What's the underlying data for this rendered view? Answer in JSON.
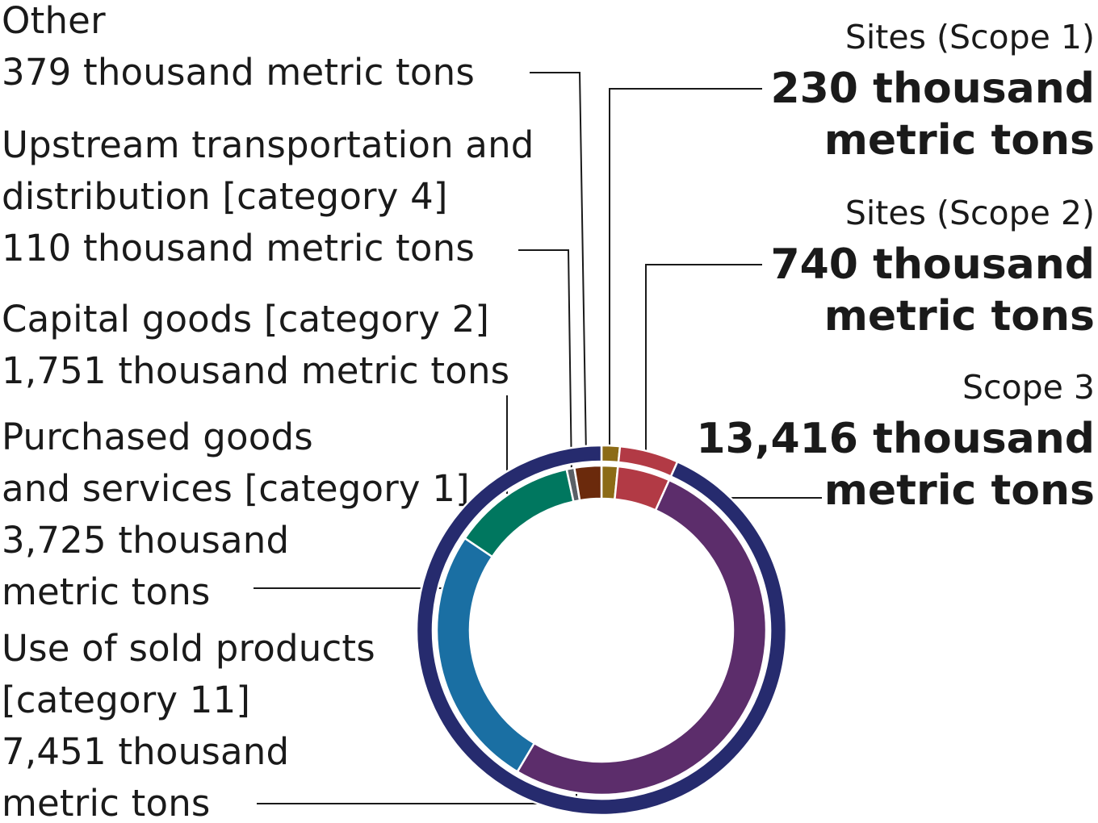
{
  "chart_data": {
    "type": "donut",
    "outer_ring": [
      {
        "key": "scope1",
        "name": "Sites (Scope 1)",
        "value": 230,
        "value_text": "230 thousand metric tons",
        "lines": [
          "230 thousand",
          "metric tons"
        ],
        "color": "#8c6b16"
      },
      {
        "key": "scope2",
        "name": "Sites (Scope 2)",
        "value": 740,
        "value_text": "740 thousand metric tons",
        "lines": [
          "740 thousand",
          "metric tons"
        ],
        "color": "#b23a45"
      },
      {
        "key": "scope3",
        "name": "Scope 3",
        "value": 13416,
        "value_text": "13,416 thousand metric tons",
        "lines": [
          "13,416 thousand",
          "metric tons"
        ],
        "color": "#262b6e"
      }
    ],
    "inner_ring": [
      {
        "key": "scope1",
        "value": 230,
        "color": "#8c6b16"
      },
      {
        "key": "scope2",
        "value": 740,
        "color": "#b23a45"
      },
      {
        "key": "use_sold",
        "name": "Use of sold products [category 11]",
        "value": 7451,
        "color": "#5c2d6b"
      },
      {
        "key": "purchased",
        "name": "Purchased goods and services [category 1]",
        "value": 3725,
        "color": "#1a6fa3"
      },
      {
        "key": "capital",
        "name": "Capital goods [category 2]",
        "value": 1751,
        "color": "#00775f"
      },
      {
        "key": "upstream",
        "name": "Upstream transportation and distribution [category 4]",
        "value": 110,
        "color": "#5a6066"
      },
      {
        "key": "other",
        "name": "Other",
        "value": 379,
        "color": "#6b2a0c"
      }
    ],
    "unit": "thousand metric tons"
  },
  "labels": {
    "other": [
      "Other",
      "379 thousand metric tons"
    ],
    "upstream": [
      "Upstream transportation and",
      "distribution [category 4]",
      "110 thousand metric tons"
    ],
    "capital": [
      "Capital goods [category 2]",
      "1,751 thousand metric tons"
    ],
    "purchased": [
      "Purchased goods",
      "and services [category 1]",
      "3,725 thousand",
      "metric tons"
    ],
    "use_sold": [
      "Use of sold products",
      "[category 11]",
      "7,451 thousand",
      "metric tons"
    ]
  }
}
